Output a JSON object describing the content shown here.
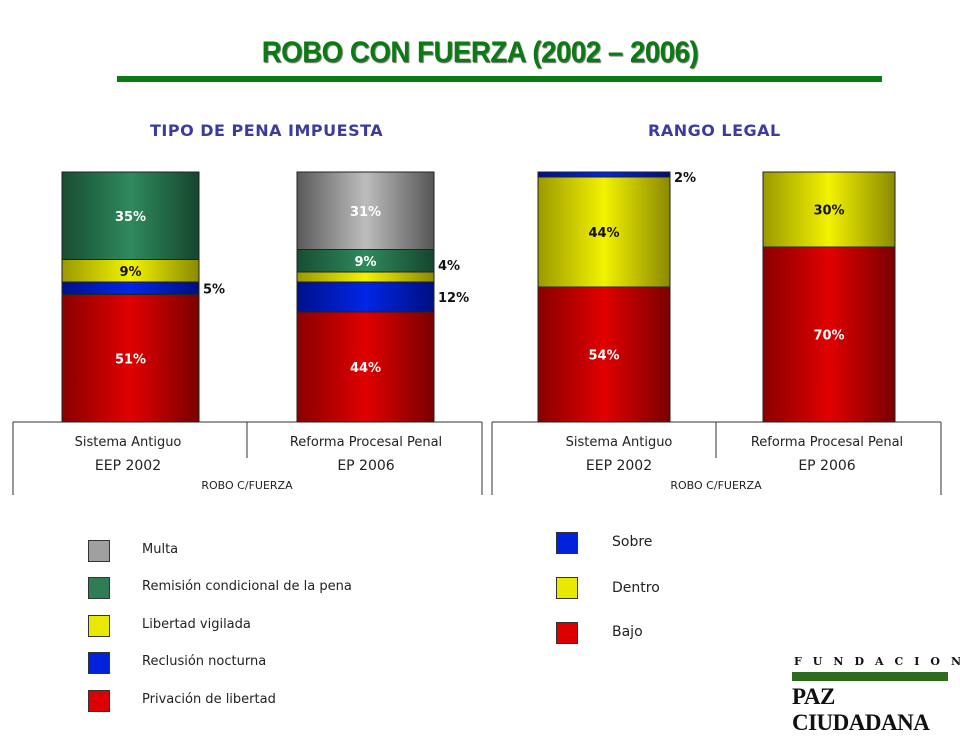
{
  "title": "ROBO CON FUERZA (2002 – 2006)",
  "colors": {
    "title": "#0a7a12",
    "section": "#3b3ba0",
    "multa": "#a0a0a0",
    "remision": "#2e7d56",
    "libertad": "#e8e800",
    "reclusion": "#0022dd",
    "privacion": "#dd0000",
    "sobre": "#0022dd",
    "dentro": "#e8e800",
    "bajo": "#dd0000"
  },
  "chart_data": [
    {
      "type": "bar",
      "stacked": true,
      "title": "TIPO DE PENA IMPUESTA",
      "categories": [
        [
          "Sistema Antiguo",
          "EEP 2002"
        ],
        [
          "Reforma Procesal Penal",
          "EP 2006"
        ]
      ],
      "axis_caption": "ROBO C/FUERZA",
      "series": [
        {
          "name": "Privación de libertad",
          "values": [
            51,
            44
          ],
          "labels": [
            "51%",
            "44%"
          ]
        },
        {
          "name": "Reclusión nocturna",
          "values": [
            5,
            12
          ],
          "labels": [
            "5%",
            "12%"
          ]
        },
        {
          "name": "Libertad vigilada",
          "values": [
            9,
            4
          ],
          "labels": [
            "9%",
            "4%"
          ]
        },
        {
          "name": "Remisión condicional de la pena",
          "values": [
            35,
            9
          ],
          "labels": [
            "35%",
            "9%"
          ]
        },
        {
          "name": "Multa",
          "values": [
            0,
            31
          ],
          "labels": [
            "",
            "31%"
          ]
        }
      ],
      "ylim": [
        0,
        100
      ]
    },
    {
      "type": "bar",
      "stacked": true,
      "title": "RANGO LEGAL",
      "categories": [
        [
          "Sistema Antiguo",
          "EEP 2002"
        ],
        [
          "Reforma Procesal Penal",
          "EP 2006"
        ]
      ],
      "axis_caption": "ROBO C/FUERZA",
      "series": [
        {
          "name": "Bajo",
          "values": [
            54,
            70
          ],
          "labels": [
            "54%",
            "70%"
          ]
        },
        {
          "name": "Dentro",
          "values": [
            44,
            30
          ],
          "labels": [
            "44%",
            "30%"
          ]
        },
        {
          "name": "Sobre",
          "values": [
            2,
            0
          ],
          "labels": [
            "2%",
            ""
          ]
        }
      ],
      "ylim": [
        0,
        100
      ]
    }
  ],
  "legend_left": [
    "Multa",
    "Remisión condicional de la pena",
    "Libertad vigilada",
    "Reclusión nocturna",
    "Privación de libertad"
  ],
  "legend_right": [
    "Sobre",
    "Dentro",
    "Bajo"
  ],
  "logo": {
    "top": "FUNDACION",
    "main": "PAZ CIUDADANA"
  }
}
